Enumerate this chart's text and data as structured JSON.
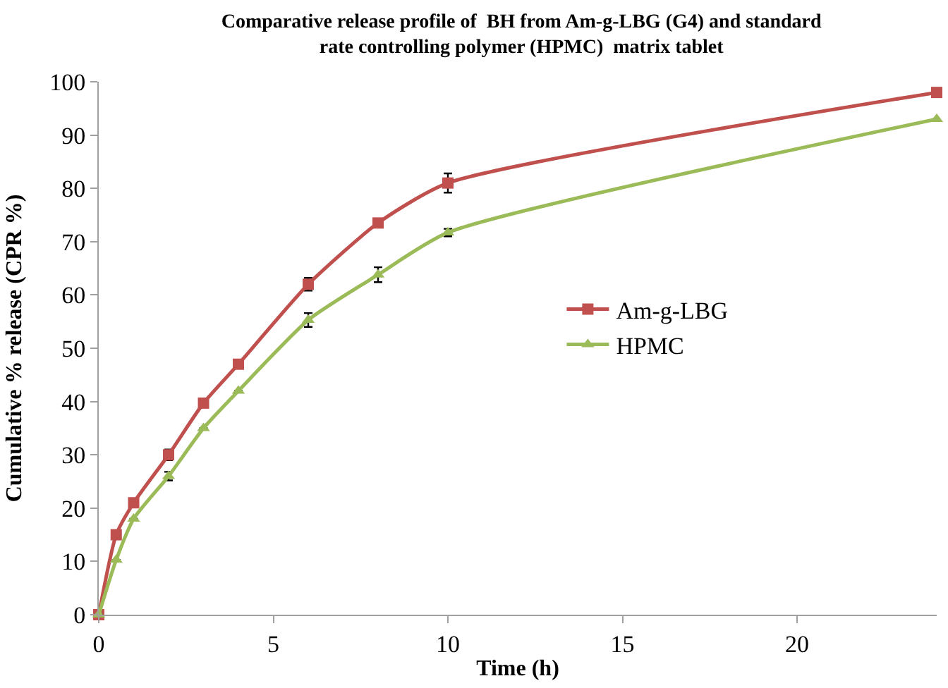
{
  "chart_data": {
    "type": "line",
    "title": "Comparative release profile of  BH from Am-g-LBG (G4) and standard rate controlling polymer (HPMC)  matrix tablet",
    "xlabel": "Time (h)",
    "ylabel": "Cumulative % release (CPR %)",
    "x": [
      0,
      0.5,
      1,
      2,
      3,
      4,
      6,
      8,
      10,
      24
    ],
    "series": [
      {
        "name": "Am-g-LBG",
        "color": "#c0504d",
        "marker": "square",
        "values": [
          0,
          15,
          21,
          30,
          39.7,
          47,
          62,
          73.5,
          81,
          98
        ],
        "errors": [
          null,
          null,
          null,
          1,
          null,
          null,
          1.2,
          null,
          1.8,
          null
        ]
      },
      {
        "name": "HPMC",
        "color": "#9bbb59",
        "marker": "triangle",
        "values": [
          0,
          10.3,
          18,
          26,
          35,
          42,
          55.3,
          63.8,
          71.7,
          93
        ],
        "errors": [
          null,
          null,
          null,
          0.8,
          null,
          null,
          1.3,
          1.4,
          0.7,
          null
        ]
      }
    ],
    "xlim": [
      0,
      24
    ],
    "xticks": [
      0,
      5,
      10,
      15,
      20
    ],
    "ylim": [
      0,
      100
    ],
    "yticks": [
      0,
      10,
      20,
      30,
      40,
      50,
      60,
      70,
      80,
      90,
      100
    ],
    "legend": "center right",
    "line_style": "solid"
  }
}
